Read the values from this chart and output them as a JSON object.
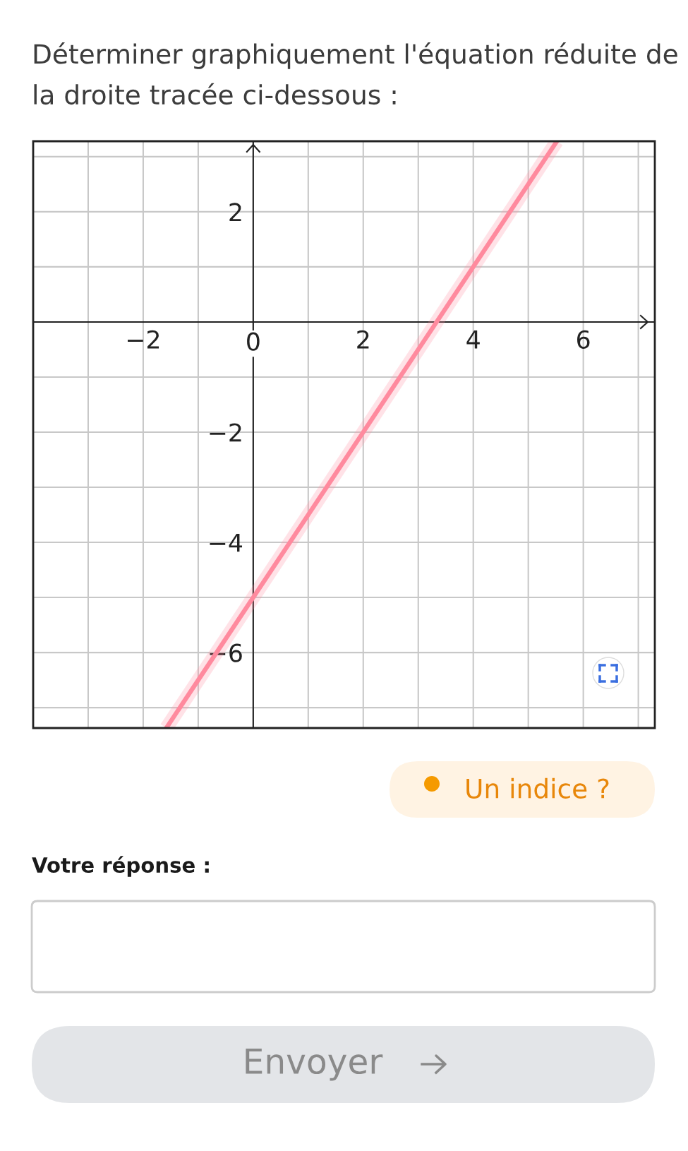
{
  "chart_data": {
    "type": "line",
    "title": "Déterminer graphiquement l'équation réduite de la droite tracée ci-dessous :",
    "x": [
      -1.58,
      5.52
    ],
    "series": [
      {
        "color": "#ff8a9e",
        "values": [
          -7.37,
          3.28
        ]
      }
    ],
    "xlim": [
      -4,
      7.3
    ],
    "ylim": [
      -7.37,
      3.28
    ],
    "xticks": [
      {
        "value": -4,
        "label": null
      },
      {
        "value": -3,
        "label": null
      },
      -2,
      {
        "value": -1,
        "label": null
      },
      {
        "value": 0,
        "label": "0"
      },
      {
        "value": 1,
        "label": null
      },
      2,
      {
        "value": 3,
        "label": null
      },
      4,
      {
        "value": 5,
        "label": null
      },
      6,
      {
        "value": 7,
        "label": null
      }
    ],
    "yticks": [
      {
        "value": -7,
        "label": null
      },
      -6,
      {
        "value": -5,
        "label": null
      },
      -4,
      {
        "value": -3,
        "label": null
      },
      -2,
      {
        "value": -1,
        "label": null
      },
      {
        "value": 0,
        "label": null
      },
      {
        "value": 1,
        "label": null
      },
      2,
      {
        "value": 3,
        "label": null
      }
    ],
    "grid": true,
    "marker": "none",
    "line_style": "solid",
    "annotations": [
      "Un indice ?",
      "Votre réponse :",
      "Envoyer"
    ]
  }
}
